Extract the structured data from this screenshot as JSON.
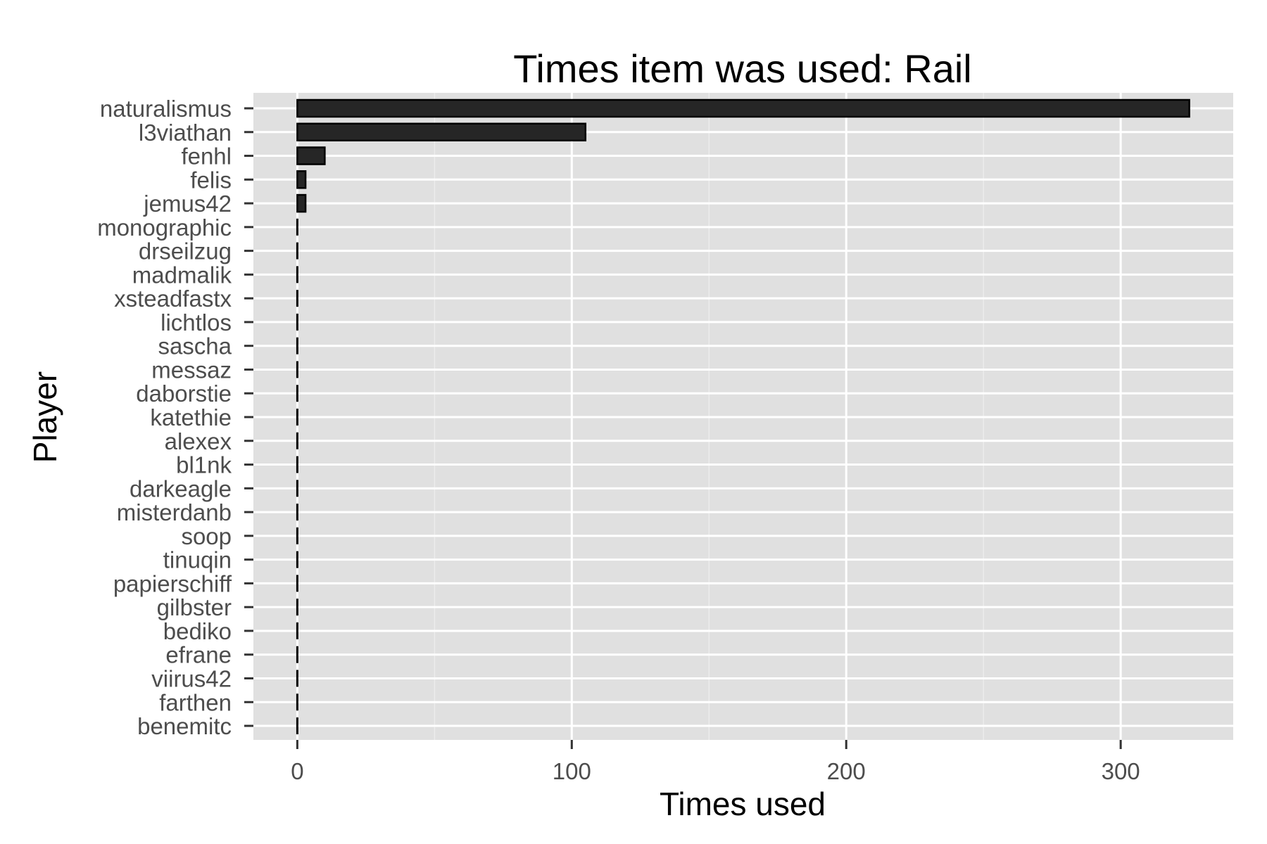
{
  "chart_data": {
    "type": "bar",
    "orientation": "horizontal",
    "title": "Times item was used: Rail",
    "xlabel": "Times used",
    "ylabel": "Player",
    "categories": [
      "naturalismus",
      "l3viathan",
      "fenhl",
      "felis",
      "jemus42",
      "monographic",
      "drseilzug",
      "madmalik",
      "xsteadfastx",
      "lichtlos",
      "sascha",
      "messaz",
      "daborstie",
      "katethie",
      "alexex",
      "bl1nk",
      "darkeagle",
      "misterdanb",
      "soop",
      "tinuqin",
      "papierschiff",
      "gilbster",
      "bediko",
      "efrane",
      "viirus42",
      "farthen",
      "benemitc"
    ],
    "values": [
      325,
      105,
      10,
      3,
      3,
      0,
      0,
      0,
      0,
      0,
      0,
      0,
      0,
      0,
      0,
      0,
      0,
      0,
      0,
      0,
      0,
      0,
      0,
      0,
      0,
      0,
      0
    ],
    "xlim": [
      -16,
      341
    ],
    "xticks": [
      0,
      100,
      200,
      300
    ],
    "xtick_labels": [
      "0",
      "100",
      "200",
      "300"
    ],
    "grid": true,
    "legend": "none",
    "colors": {
      "panel_background": "#e0e0e0",
      "grid_major": "#ffffff",
      "grid_minor": "#ececec",
      "bar_fill": "#262626",
      "bar_outline": "#000000",
      "tick_label": "#4d4d4d",
      "tick_mark": "#333333"
    }
  }
}
